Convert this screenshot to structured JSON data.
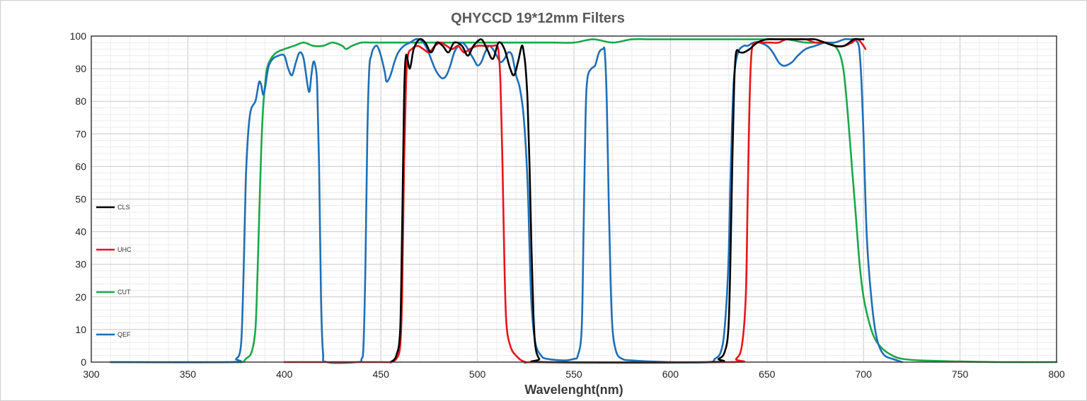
{
  "chart_data": {
    "type": "line",
    "title": "QHYCCD 19*12mm Filters",
    "xlabel": "Wavelenght(nm)",
    "ylabel": "",
    "xlim": [
      300,
      800
    ],
    "ylim": [
      0,
      100
    ],
    "xticks": [
      "300",
      "350",
      "400",
      "450",
      "500",
      "550",
      "600",
      "650",
      "700",
      "750",
      "800"
    ],
    "yticks": [
      "0",
      "10",
      "20",
      "30",
      "40",
      "50",
      "60",
      "70",
      "80",
      "90",
      "100"
    ],
    "grid": true,
    "legend_position": "left",
    "series": [
      {
        "name": "CLS",
        "color": "#000000",
        "points": [
          [
            455,
            0
          ],
          [
            458,
            2
          ],
          [
            460,
            10
          ],
          [
            461,
            40
          ],
          [
            462,
            80
          ],
          [
            463,
            94
          ],
          [
            465,
            90
          ],
          [
            467,
            96
          ],
          [
            470,
            99
          ],
          [
            473,
            98
          ],
          [
            476,
            95
          ],
          [
            479,
            98
          ],
          [
            482,
            97
          ],
          [
            485,
            95
          ],
          [
            488,
            98
          ],
          [
            492,
            97
          ],
          [
            495,
            94
          ],
          [
            498,
            97
          ],
          [
            502,
            99
          ],
          [
            505,
            96
          ],
          [
            508,
            93
          ],
          [
            511,
            98
          ],
          [
            514,
            96
          ],
          [
            517,
            90
          ],
          [
            519,
            88
          ],
          [
            521,
            92
          ],
          [
            523,
            97
          ],
          [
            524,
            95
          ],
          [
            525,
            90
          ],
          [
            526,
            80
          ],
          [
            527,
            60
          ],
          [
            528,
            35
          ],
          [
            529,
            15
          ],
          [
            530,
            5
          ],
          [
            532,
            1
          ],
          [
            535,
            0
          ],
          [
            620,
            0
          ],
          [
            625,
            1
          ],
          [
            628,
            3
          ],
          [
            630,
            10
          ],
          [
            631,
            30
          ],
          [
            632,
            60
          ],
          [
            633,
            85
          ],
          [
            634,
            95
          ],
          [
            636,
            95
          ],
          [
            638,
            95
          ],
          [
            641,
            96
          ],
          [
            645,
            98
          ],
          [
            650,
            99
          ],
          [
            655,
            99
          ],
          [
            660,
            99
          ],
          [
            665,
            99
          ],
          [
            670,
            99
          ],
          [
            675,
            99
          ],
          [
            680,
            98
          ],
          [
            685,
            97
          ],
          [
            690,
            97
          ],
          [
            695,
            99
          ],
          [
            698,
            99
          ],
          [
            700,
            99
          ]
        ]
      },
      {
        "name": "UHC",
        "color": "#e8141c",
        "points": [
          [
            400,
            0
          ],
          [
            450,
            0
          ],
          [
            455,
            0
          ],
          [
            458,
            1
          ],
          [
            460,
            5
          ],
          [
            461,
            20
          ],
          [
            462,
            60
          ],
          [
            463,
            85
          ],
          [
            464,
            94
          ],
          [
            466,
            96
          ],
          [
            469,
            97
          ],
          [
            472,
            96
          ],
          [
            475,
            95
          ],
          [
            478,
            97
          ],
          [
            481,
            98
          ],
          [
            484,
            97
          ],
          [
            487,
            96
          ],
          [
            490,
            97
          ],
          [
            493,
            95
          ],
          [
            496,
            96
          ],
          [
            500,
            97
          ],
          [
            504,
            97
          ],
          [
            508,
            97
          ],
          [
            510,
            97
          ],
          [
            511,
            95
          ],
          [
            512,
            85
          ],
          [
            513,
            60
          ],
          [
            514,
            30
          ],
          [
            515,
            12
          ],
          [
            517,
            5
          ],
          [
            520,
            2
          ],
          [
            525,
            0
          ],
          [
            535,
            0
          ],
          [
            630,
            0
          ],
          [
            634,
            1
          ],
          [
            637,
            5
          ],
          [
            639,
            20
          ],
          [
            640,
            50
          ],
          [
            641,
            80
          ],
          [
            642,
            95
          ],
          [
            644,
            98
          ],
          [
            648,
            98
          ],
          [
            652,
            98
          ],
          [
            656,
            98
          ],
          [
            660,
            99
          ],
          [
            665,
            99
          ],
          [
            670,
            99
          ],
          [
            675,
            98
          ],
          [
            680,
            98
          ],
          [
            685,
            97
          ],
          [
            690,
            97
          ],
          [
            694,
            98
          ],
          [
            697,
            99
          ],
          [
            700,
            97
          ],
          [
            701,
            96
          ]
        ]
      },
      {
        "name": "CUT",
        "color": "#1aa84a",
        "points": [
          [
            310,
            0
          ],
          [
            370,
            0
          ],
          [
            378,
            0
          ],
          [
            380,
            1
          ],
          [
            383,
            3
          ],
          [
            385,
            10
          ],
          [
            386,
            25
          ],
          [
            387,
            45
          ],
          [
            388,
            65
          ],
          [
            389,
            78
          ],
          [
            390,
            85
          ],
          [
            391,
            90
          ],
          [
            393,
            93
          ],
          [
            396,
            95
          ],
          [
            400,
            96
          ],
          [
            405,
            97
          ],
          [
            410,
            98
          ],
          [
            415,
            97
          ],
          [
            420,
            97
          ],
          [
            425,
            98
          ],
          [
            430,
            97
          ],
          [
            432,
            96
          ],
          [
            435,
            97
          ],
          [
            440,
            98
          ],
          [
            445,
            98
          ],
          [
            450,
            98
          ],
          [
            460,
            98
          ],
          [
            470,
            98
          ],
          [
            480,
            98
          ],
          [
            490,
            98
          ],
          [
            500,
            98
          ],
          [
            510,
            98
          ],
          [
            520,
            98
          ],
          [
            530,
            98
          ],
          [
            540,
            98
          ],
          [
            550,
            98
          ],
          [
            560,
            99
          ],
          [
            570,
            98
          ],
          [
            580,
            99
          ],
          [
            590,
            99
          ],
          [
            600,
            99
          ],
          [
            610,
            99
          ],
          [
            620,
            99
          ],
          [
            630,
            99
          ],
          [
            640,
            99
          ],
          [
            650,
            99
          ],
          [
            660,
            99
          ],
          [
            670,
            98
          ],
          [
            680,
            98
          ],
          [
            685,
            97
          ],
          [
            688,
            94
          ],
          [
            690,
            88
          ],
          [
            692,
            75
          ],
          [
            694,
            60
          ],
          [
            696,
            45
          ],
          [
            698,
            30
          ],
          [
            700,
            20
          ],
          [
            703,
            12
          ],
          [
            706,
            7
          ],
          [
            710,
            4
          ],
          [
            715,
            2
          ],
          [
            720,
            1
          ],
          [
            730,
            0.5
          ],
          [
            750,
            0.2
          ],
          [
            770,
            0
          ],
          [
            800,
            0
          ]
        ]
      },
      {
        "name": "QEF",
        "color": "#1e6fb7",
        "points": [
          [
            310,
            0
          ],
          [
            372,
            0
          ],
          [
            375,
            1
          ],
          [
            377,
            3
          ],
          [
            378,
            10
          ],
          [
            379,
            30
          ],
          [
            380,
            55
          ],
          [
            381,
            68
          ],
          [
            382,
            75
          ],
          [
            383,
            78
          ],
          [
            385,
            80
          ],
          [
            386,
            83
          ],
          [
            387,
            86
          ],
          [
            388,
            85
          ],
          [
            389,
            82
          ],
          [
            390,
            84
          ],
          [
            391,
            88
          ],
          [
            392,
            91
          ],
          [
            394,
            93
          ],
          [
            397,
            94
          ],
          [
            400,
            94
          ],
          [
            402,
            90
          ],
          [
            404,
            88
          ],
          [
            406,
            92
          ],
          [
            408,
            95
          ],
          [
            410,
            93
          ],
          [
            412,
            85
          ],
          [
            413,
            83
          ],
          [
            414,
            88
          ],
          [
            415,
            92
          ],
          [
            416,
            91
          ],
          [
            417,
            85
          ],
          [
            418,
            60
          ],
          [
            419,
            20
          ],
          [
            420,
            3
          ],
          [
            422,
            0
          ],
          [
            438,
            0
          ],
          [
            440,
            1
          ],
          [
            441,
            5
          ],
          [
            442,
            30
          ],
          [
            443,
            70
          ],
          [
            444,
            90
          ],
          [
            445,
            94
          ],
          [
            446,
            96
          ],
          [
            448,
            97
          ],
          [
            450,
            94
          ],
          [
            452,
            89
          ],
          [
            453,
            86
          ],
          [
            455,
            88
          ],
          [
            457,
            92
          ],
          [
            459,
            95
          ],
          [
            462,
            97
          ],
          [
            465,
            98
          ],
          [
            468,
            99
          ],
          [
            470,
            99
          ],
          [
            472,
            98
          ],
          [
            474,
            96
          ],
          [
            476,
            93
          ],
          [
            478,
            90
          ],
          [
            480,
            88
          ],
          [
            482,
            87
          ],
          [
            484,
            88
          ],
          [
            486,
            91
          ],
          [
            488,
            95
          ],
          [
            490,
            97
          ],
          [
            492,
            98
          ],
          [
            494,
            97
          ],
          [
            496,
            95
          ],
          [
            498,
            93
          ],
          [
            500,
            91
          ],
          [
            502,
            92
          ],
          [
            504,
            95
          ],
          [
            506,
            97
          ],
          [
            508,
            96
          ],
          [
            510,
            94
          ],
          [
            512,
            92
          ],
          [
            514,
            93
          ],
          [
            516,
            95
          ],
          [
            518,
            94
          ],
          [
            520,
            88
          ],
          [
            522,
            84
          ],
          [
            524,
            75
          ],
          [
            526,
            55
          ],
          [
            527,
            35
          ],
          [
            528,
            18
          ],
          [
            530,
            6
          ],
          [
            533,
            2
          ],
          [
            536,
            1
          ],
          [
            545,
            0.5
          ],
          [
            550,
            1
          ],
          [
            552,
            2
          ],
          [
            554,
            10
          ],
          [
            555,
            40
          ],
          [
            556,
            75
          ],
          [
            557,
            87
          ],
          [
            559,
            90
          ],
          [
            561,
            91
          ],
          [
            563,
            95
          ],
          [
            565,
            96
          ],
          [
            566,
            95
          ],
          [
            567,
            80
          ],
          [
            568,
            50
          ],
          [
            569,
            25
          ],
          [
            570,
            10
          ],
          [
            572,
            3
          ],
          [
            575,
            1
          ],
          [
            580,
            0.5
          ],
          [
            600,
            0
          ],
          [
            620,
            0
          ],
          [
            623,
            1
          ],
          [
            626,
            3
          ],
          [
            628,
            10
          ],
          [
            630,
            30
          ],
          [
            631,
            55
          ],
          [
            632,
            75
          ],
          [
            633,
            88
          ],
          [
            635,
            95
          ],
          [
            638,
            97
          ],
          [
            640,
            97
          ],
          [
            643,
            98
          ],
          [
            646,
            98
          ],
          [
            650,
            97
          ],
          [
            653,
            95
          ],
          [
            656,
            92
          ],
          [
            658,
            91
          ],
          [
            660,
            91
          ],
          [
            663,
            92
          ],
          [
            666,
            94
          ],
          [
            670,
            96
          ],
          [
            675,
            97
          ],
          [
            680,
            98
          ],
          [
            685,
            98
          ],
          [
            690,
            99
          ],
          [
            693,
            99
          ],
          [
            695,
            99
          ],
          [
            697,
            98
          ],
          [
            698,
            95
          ],
          [
            699,
            85
          ],
          [
            700,
            70
          ],
          [
            701,
            50
          ],
          [
            702,
            35
          ],
          [
            704,
            20
          ],
          [
            706,
            10
          ],
          [
            708,
            5
          ],
          [
            711,
            2
          ],
          [
            715,
            1
          ],
          [
            720,
            0
          ]
        ]
      }
    ]
  }
}
